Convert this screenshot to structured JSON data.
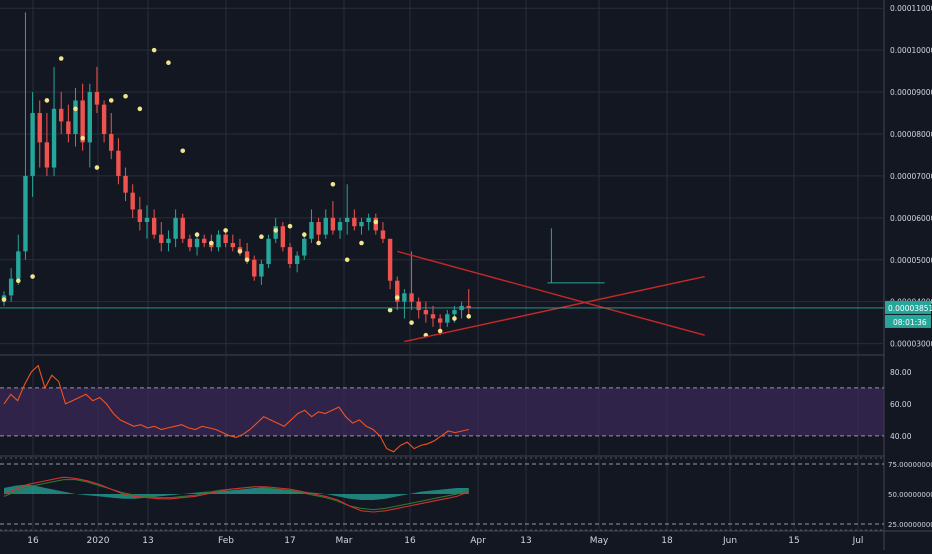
{
  "colors": {
    "background": "#131722",
    "grid": "#2a2e39",
    "axis_text": "#d1d4dc",
    "up": "#26a69a",
    "down": "#ef5350",
    "marker": "#f0e68c",
    "trendline": "#c62828",
    "rsi_line": "#f4511e",
    "rsi_band": "#3c2a5a",
    "osc_fill": "#26a69a",
    "osc_red": "#d32f2f",
    "osc_green": "#2e7d32",
    "price_tag": "#26a69a"
  },
  "chart_data": [
    {
      "type": "candlestick",
      "title": "",
      "y_ticks": [
        "0.00011000",
        "0.00010000",
        "0.00009000",
        "0.00008000",
        "0.00007000",
        "0.00006000",
        "0.00005000",
        "0.00004000",
        "0.00003000"
      ],
      "ylim": [
        2.8e-05,
        0.000111
      ],
      "last_price_label": "0.00003851",
      "countdown_label": "08:01:36",
      "x_ticks": [
        "16",
        "2020",
        "13",
        "Feb",
        "17",
        "Mar",
        "16",
        "Apr",
        "13",
        "May",
        "18",
        "Jun",
        "15",
        "Jul"
      ],
      "ohlc_approx": [
        [
          4.05e-05,
          4.25e-05,
          3.9e-05,
          4.15e-05
        ],
        [
          4.15e-05,
          4.8e-05,
          4e-05,
          4.55e-05
        ],
        [
          4.55e-05,
          5.6e-05,
          4.4e-05,
          5.2e-05
        ],
        [
          5.2e-05,
          0.000109,
          5e-05,
          7e-05
        ],
        [
          7e-05,
          9e-05,
          6.5e-05,
          8.5e-05
        ],
        [
          8.5e-05,
          8.8e-05,
          7.2e-05,
          7.8e-05
        ],
        [
          7.8e-05,
          8.5e-05,
          7e-05,
          7.2e-05
        ],
        [
          7.2e-05,
          9.6e-05,
          7e-05,
          8.6e-05
        ],
        [
          8.6e-05,
          9e-05,
          8e-05,
          8.3e-05
        ],
        [
          8.3e-05,
          8.7e-05,
          7.8e-05,
          8e-05
        ],
        [
          8e-05,
          9.1e-05,
          7.7e-05,
          8.8e-05
        ],
        [
          8.8e-05,
          9.2e-05,
          7.6e-05,
          7.8e-05
        ],
        [
          7.8e-05,
          9.2e-05,
          7.2e-05,
          9e-05
        ],
        [
          9e-05,
          9.6e-05,
          8.5e-05,
          8.7e-05
        ],
        [
          8.7e-05,
          8.8e-05,
          7.8e-05,
          8e-05
        ],
        [
          8e-05,
          8.5e-05,
          7.4e-05,
          7.6e-05
        ],
        [
          7.6e-05,
          7.9e-05,
          6.8e-05,
          7e-05
        ],
        [
          7e-05,
          7.2e-05,
          6.4e-05,
          6.6e-05
        ],
        [
          6.6e-05,
          6.8e-05,
          6e-05,
          6.2e-05
        ],
        [
          6.2e-05,
          6.5e-05,
          5.7e-05,
          5.9e-05
        ],
        [
          5.9e-05,
          6.3e-05,
          5.5e-05,
          6e-05
        ],
        [
          6e-05,
          6.2e-05,
          5.5e-05,
          5.6e-05
        ],
        [
          5.6e-05,
          5.9e-05,
          5.2e-05,
          5.4e-05
        ],
        [
          5.4e-05,
          5.7e-05,
          5.2e-05,
          5.5e-05
        ],
        [
          5.5e-05,
          6.2e-05,
          5.3e-05,
          6e-05
        ],
        [
          6e-05,
          6.1e-05,
          5.4e-05,
          5.5e-05
        ],
        [
          5.5e-05,
          5.6e-05,
          5.2e-05,
          5.3e-05
        ],
        [
          5.3e-05,
          5.6e-05,
          5.1e-05,
          5.5e-05
        ],
        [
          5.5e-05,
          5.6e-05,
          5.3e-05,
          5.4e-05
        ],
        [
          5.4e-05,
          5.6e-05,
          5.2e-05,
          5.3e-05
        ],
        [
          5.3e-05,
          5.7e-05,
          5.2e-05,
          5.6e-05
        ],
        [
          5.6e-05,
          5.7e-05,
          5.3e-05,
          5.4e-05
        ],
        [
          5.4e-05,
          5.6e-05,
          5.2e-05,
          5.3e-05
        ],
        [
          5.3e-05,
          5.5e-05,
          5.1e-05,
          5.2e-05
        ],
        [
          5.2e-05,
          5.4e-05,
          4.9e-05,
          5e-05
        ],
        [
          5e-05,
          5.1e-05,
          4.5e-05,
          4.6e-05
        ],
        [
          4.6e-05,
          5e-05,
          4.4e-05,
          4.9e-05
        ],
        [
          4.9e-05,
          5.6e-05,
          4.8e-05,
          5.5e-05
        ],
        [
          5.5e-05,
          6e-05,
          5.4e-05,
          5.8e-05
        ],
        [
          5.8e-05,
          5.9e-05,
          5.2e-05,
          5.3e-05
        ],
        [
          5.3e-05,
          5.4e-05,
          4.8e-05,
          4.9e-05
        ],
        [
          4.9e-05,
          5.2e-05,
          4.7e-05,
          5.1e-05
        ],
        [
          5.1e-05,
          5.6e-05,
          5e-05,
          5.5e-05
        ],
        [
          5.5e-05,
          6.2e-05,
          5.4e-05,
          5.9e-05
        ],
        [
          5.9e-05,
          6e-05,
          5.4e-05,
          5.6e-05
        ],
        [
          5.6e-05,
          6.2e-05,
          5.5e-05,
          6e-05
        ],
        [
          6e-05,
          6.4e-05,
          5.6e-05,
          5.7e-05
        ],
        [
          5.7e-05,
          6e-05,
          5.5e-05,
          5.9e-05
        ],
        [
          5.9e-05,
          6.8e-05,
          5.6e-05,
          6e-05
        ],
        [
          6e-05,
          6.2e-05,
          5.7e-05,
          5.8e-05
        ],
        [
          5.8e-05,
          6e-05,
          5.6e-05,
          5.9e-05
        ],
        [
          5.9e-05,
          6.1e-05,
          5.7e-05,
          6e-05
        ],
        [
          6e-05,
          6.1e-05,
          5.6e-05,
          5.7e-05
        ],
        [
          5.7e-05,
          5.9e-05,
          5.4e-05,
          5.5e-05
        ],
        [
          5.5e-05,
          5.2e-05,
          4.3e-05,
          4.5e-05
        ],
        [
          4.5e-05,
          4.6e-05,
          3.8e-05,
          4e-05
        ],
        [
          4e-05,
          4.3e-05,
          3.6e-05,
          4.2e-05
        ],
        [
          4.2e-05,
          5.2e-05,
          3.8e-05,
          4e-05
        ],
        [
          4e-05,
          4.1e-05,
          3.6e-05,
          3.8e-05
        ],
        [
          3.8e-05,
          4e-05,
          3.5e-05,
          3.7e-05
        ],
        [
          3.7e-05,
          3.9e-05,
          3.4e-05,
          3.6e-05
        ],
        [
          3.6e-05,
          3.7e-05,
          3.2e-05,
          3.5e-05
        ],
        [
          3.5e-05,
          3.8e-05,
          3.4e-05,
          3.7e-05
        ],
        [
          3.7e-05,
          3.9e-05,
          3.5e-05,
          3.8e-05
        ],
        [
          3.8e-05,
          4e-05,
          3.6e-05,
          3.9e-05
        ],
        [
          3.9e-05,
          4.3e-05,
          3.7e-05,
          3.85e-05
        ]
      ],
      "markers_approx": [
        [
          4.05e-05,
          4.5e-05,
          4.6e-05,
          8.8e-05,
          9.8e-05,
          8.6e-05,
          7.9e-05,
          7.2e-05,
          8.8e-05,
          8.9e-05,
          8.6e-05,
          0.0001,
          9.7e-05,
          7.6e-05,
          5.6e-05,
          5.4e-05,
          5.7e-05,
          5.2e-05,
          5e-05,
          5.55e-05,
          5.7e-05,
          5.8e-05,
          5.6e-05,
          5.4e-05,
          6.8e-05,
          5e-05,
          5.4e-05,
          5.9e-05,
          3.8e-05,
          4.1e-05,
          3.5e-05,
          3.2e-05,
          3.3e-05,
          3.6e-05,
          3.65e-05
        ]
      ],
      "trendlines": [
        {
          "from_index": 55,
          "to_index": 98,
          "from_value": 5.2e-05,
          "to_value": 3.2e-05
        },
        {
          "from_index": 56,
          "to_index": 98,
          "from_value": 3.05e-05,
          "to_value": 4.6e-05
        }
      ],
      "projection": {
        "start_index": 76,
        "end_index": 84,
        "level": 4.45e-05,
        "wick_high": 5.75e-05
      }
    },
    {
      "type": "line",
      "y_ticks": [
        "80.00",
        "60.00",
        "40.00"
      ],
      "ylim": [
        28,
        90
      ],
      "band": [
        40,
        70
      ],
      "values": [
        60,
        66,
        62,
        72,
        80,
        84,
        70,
        78,
        74,
        60,
        62,
        64,
        66,
        62,
        64,
        60,
        54,
        50,
        48,
        46,
        47,
        45,
        46,
        44,
        45,
        46,
        47,
        45,
        44,
        46,
        45,
        44,
        42,
        40,
        39,
        41,
        44,
        48,
        52,
        50,
        48,
        46,
        50,
        54,
        56,
        52,
        55,
        54,
        56,
        58,
        52,
        48,
        50,
        46,
        44,
        40,
        32,
        30,
        34,
        36,
        32,
        34,
        35,
        37,
        40,
        43,
        42,
        43,
        44
      ]
    },
    {
      "type": "area",
      "y_ticks": [
        "75.00000000",
        "50.00000000",
        "25.00000000"
      ],
      "ylim": [
        20,
        80
      ],
      "fill_values": [
        55,
        57,
        58,
        56,
        54,
        52,
        50,
        49,
        48,
        47,
        46,
        46,
        47,
        48,
        49,
        50,
        51,
        52,
        52,
        53,
        54,
        55,
        55,
        54,
        53,
        52,
        51,
        50,
        48,
        46,
        45,
        45,
        46,
        48,
        50,
        52,
        53,
        54,
        55,
        55
      ],
      "red_values": [
        50,
        54,
        58,
        60,
        62,
        64,
        63,
        61,
        58,
        54,
        50,
        48,
        47,
        46,
        46,
        47,
        48,
        50,
        52,
        54,
        55,
        56,
        56,
        55,
        54,
        52,
        50,
        48,
        45,
        40,
        36,
        35,
        36,
        38,
        40,
        42,
        44,
        46,
        48,
        52
      ],
      "green_values": [
        48,
        52,
        56,
        58,
        60,
        62,
        62,
        60,
        57,
        54,
        51,
        49,
        48,
        47,
        47,
        48,
        49,
        51,
        53,
        54,
        55,
        56,
        55,
        54,
        53,
        51,
        49,
        47,
        44,
        40,
        38,
        37,
        38,
        40,
        42,
        44,
        46,
        48,
        50,
        53
      ]
    }
  ]
}
